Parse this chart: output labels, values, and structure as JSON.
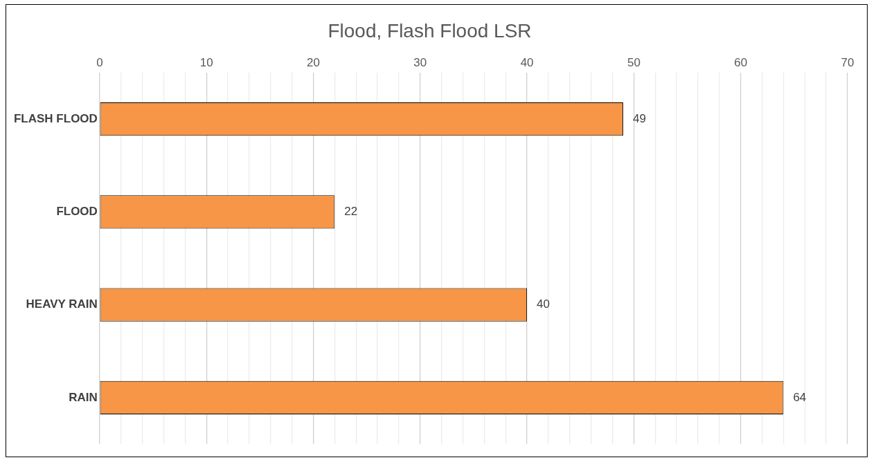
{
  "chart_data": {
    "type": "bar",
    "orientation": "horizontal",
    "title": "Flood, Flash Flood LSR",
    "categories": [
      "FLASH FLOOD",
      "FLOOD",
      "HEAVY RAIN",
      "RAIN"
    ],
    "values": [
      49,
      22,
      40,
      64
    ],
    "color": "#f79646",
    "xlim": [
      0,
      70
    ],
    "xticks": [
      0,
      {
        "value": 2,
        "label": null
      },
      {
        "value": 4,
        "label": null
      },
      {
        "value": 6,
        "label": null
      },
      {
        "value": 8,
        "label": null
      },
      10,
      {
        "value": 12,
        "label": null
      },
      {
        "value": 14,
        "label": null
      },
      {
        "value": 16,
        "label": null
      },
      {
        "value": 18,
        "label": null
      },
      20,
      {
        "value": 22,
        "label": null
      },
      {
        "value": 24,
        "label": null
      },
      {
        "value": 26,
        "label": null
      },
      {
        "value": 28,
        "label": null
      },
      30,
      {
        "value": 32,
        "label": null
      },
      {
        "value": 34,
        "label": null
      },
      {
        "value": 36,
        "label": null
      },
      {
        "value": 38,
        "label": null
      },
      40,
      {
        "value": 42,
        "label": null
      },
      {
        "value": 44,
        "label": null
      },
      {
        "value": 46,
        "label": null
      },
      {
        "value": 48,
        "label": null
      },
      50,
      {
        "value": 52,
        "label": null
      },
      {
        "value": 54,
        "label": null
      },
      {
        "value": 56,
        "label": null
      },
      {
        "value": 58,
        "label": null
      },
      60,
      {
        "value": 62,
        "label": null
      },
      {
        "value": 64,
        "label": null
      },
      {
        "value": 66,
        "label": null
      },
      {
        "value": 68,
        "label": null
      },
      70
    ],
    "grid": "x",
    "data_labels": true,
    "legend": false
  }
}
